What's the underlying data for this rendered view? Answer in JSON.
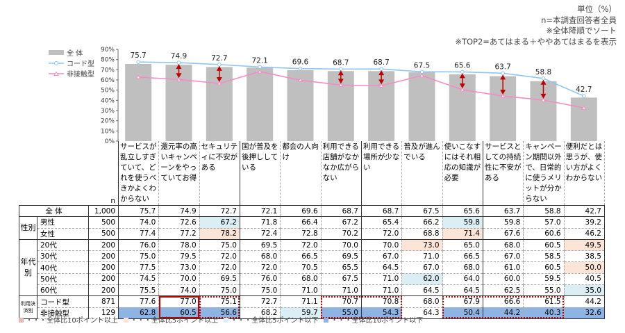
{
  "notes": [
    "単位（%）",
    "n=本調査回答者全員",
    "※全体降順でソート",
    "※TOP2=あてはまる＋ややあてはまるを表示"
  ],
  "legend": {
    "total": "全 体",
    "code": "コード型",
    "contactless": "非接触型"
  },
  "colors": {
    "bar": "#bfbfbf",
    "code": "#8ec5f5",
    "contactless": "#f28cc8",
    "arrow": "#c00000",
    "plus10": "#e6b8b7",
    "plus5": "#fce4d6",
    "minus5": "#daeef3",
    "minus10": "#8db4e2"
  },
  "chart_data": {
    "type": "bar",
    "categories": [
      "サービスが乱立しすぎていて、どれを使うべきかよくわからない",
      "還元率の高いキャンペーンをやっていてお得",
      "セキュリティに不安がある",
      "国が普及を後押ししている",
      "都会の人向け",
      "利用できる店舗がなかなか広がらない",
      "利用できる場所が少ない",
      "普及が進んでいる",
      "使いこなすにはそれ相応の知識が必要",
      "サービスとしての持続性に不安がある",
      "キャンペーン期間以外で、日常的に使うメリットが分からない",
      "便利だとは思うが、使い方がよくわからない"
    ],
    "series": [
      {
        "name": "全 体",
        "type": "bar",
        "values": [
          75.7,
          74.9,
          72.7,
          72.1,
          69.6,
          68.7,
          68.7,
          67.5,
          65.6,
          63.7,
          58.8,
          42.7
        ]
      },
      {
        "name": "コード型",
        "type": "line",
        "values": [
          77.6,
          77.0,
          75.1,
          72.7,
          71.1,
          70.7,
          70.8,
          68.0,
          67.9,
          66.6,
          61.5,
          44.2
        ]
      },
      {
        "name": "非接触型",
        "type": "line",
        "values": [
          62.8,
          60.5,
          56.6,
          68.2,
          59.7,
          55.0,
          54.3,
          64.3,
          50.4,
          44.2,
          40.3,
          32.6
        ]
      }
    ],
    "arrows_at": [
      1,
      2,
      5,
      6,
      8,
      9,
      10
    ],
    "yticks": [
      "0%",
      "10%",
      "20%",
      "30%",
      "40%",
      "50%",
      "60%",
      "70%",
      "80%",
      "90%"
    ],
    "ylim": [
      0,
      90
    ]
  },
  "table": {
    "n_header": "n",
    "rows": [
      {
        "group": "全 体",
        "label": "",
        "n": "1,000",
        "values": [
          "75.7",
          "74.9",
          "72.7",
          "72.1",
          "69.6",
          "68.7",
          "68.7",
          "67.5",
          "65.6",
          "63.7",
          "58.8",
          "42.7"
        ],
        "hl": [
          "",
          "",
          "",
          "",
          "",
          "",
          "",
          "",
          "",
          "",
          "",
          ""
        ]
      },
      {
        "group": "性別",
        "label": "男性",
        "n": "500",
        "values": [
          "74.0",
          "72.6",
          "67.2",
          "71.8",
          "66.4",
          "67.2",
          "65.4",
          "66.2",
          "59.8",
          "59.8",
          "57.0",
          "39.2"
        ],
        "hl": [
          "",
          "",
          "lb",
          "",
          "",
          "",
          "",
          "",
          "lb",
          "",
          "",
          ""
        ]
      },
      {
        "group": "",
        "label": "女性",
        "n": "500",
        "values": [
          "77.4",
          "77.2",
          "78.2",
          "72.4",
          "72.8",
          "70.2",
          "72.0",
          "68.8",
          "71.4",
          "67.6",
          "60.6",
          "46.2"
        ],
        "hl": [
          "",
          "",
          "pe",
          "",
          "",
          "",
          "",
          "",
          "pe",
          "",
          "",
          ""
        ]
      },
      {
        "group": "年代別",
        "label": "20代",
        "n": "200",
        "values": [
          "76.0",
          "78.0",
          "75.0",
          "69.5",
          "72.0",
          "70.0",
          "70.0",
          "73.0",
          "65.0",
          "68.0",
          "60.5",
          "49.5"
        ],
        "hl": [
          "",
          "",
          "",
          "",
          "",
          "",
          "",
          "pe",
          "",
          "",
          "",
          "pe"
        ]
      },
      {
        "group": "",
        "label": "30代",
        "n": "200",
        "values": [
          "75.0",
          "79.5",
          "72.0",
          "68.0",
          "66.5",
          "69.5",
          "67.0",
          "71.0",
          "66.5",
          "67.0",
          "58.5",
          "38.5"
        ],
        "hl": [
          "",
          "",
          "",
          "",
          "",
          "",
          "",
          "",
          "",
          "",
          "",
          ""
        ]
      },
      {
        "group": "",
        "label": "40代",
        "n": "200",
        "values": [
          "77.5",
          "73.0",
          "72.0",
          "72.0",
          "70.5",
          "65.5",
          "64.5",
          "67.0",
          "68.0",
          "61.0",
          "60.5",
          "50.0"
        ],
        "hl": [
          "",
          "",
          "",
          "",
          "",
          "",
          "",
          "",
          "",
          "",
          "",
          "pe"
        ]
      },
      {
        "group": "",
        "label": "50代",
        "n": "200",
        "values": [
          "74.5",
          "70.0",
          "69.5",
          "76.0",
          "68.0",
          "67.5",
          "71.0",
          "62.0",
          "64.0",
          "60.0",
          "59.5",
          "40.5"
        ],
        "hl": [
          "",
          "",
          "",
          "",
          "",
          "",
          "",
          "lb",
          "",
          "",
          "",
          ""
        ]
      },
      {
        "group": "",
        "label": "60代",
        "n": "200",
        "values": [
          "75.5",
          "74.0",
          "75.0",
          "75.0",
          "71.0",
          "71.0",
          "71.0",
          "64.5",
          "64.5",
          "62.5",
          "55.0",
          "35.0"
        ],
        "hl": [
          "",
          "",
          "",
          "",
          "",
          "",
          "",
          "",
          "",
          "",
          "",
          "lb"
        ]
      },
      {
        "group": "利用決済別",
        "label": "コード型",
        "n": "871",
        "values": [
          "77.6",
          "77.0",
          "75.1",
          "72.7",
          "71.1",
          "70.7",
          "70.8",
          "68.0",
          "67.9",
          "66.6",
          "61.5",
          "44.2"
        ],
        "hl": [
          "",
          "",
          "",
          "",
          "",
          "",
          "",
          "",
          "",
          "",
          "",
          ""
        ]
      },
      {
        "group": "",
        "label": "非接触型",
        "n": "129",
        "values": [
          "62.8",
          "60.5",
          "56.6",
          "68.2",
          "59.7",
          "55.0",
          "54.3",
          "64.3",
          "50.4",
          "44.2",
          "40.3",
          "32.6"
        ],
        "hl": [
          "bl",
          "bl",
          "bl",
          "",
          "lb",
          "bl",
          "bl",
          "",
          "bl",
          "bl",
          "bl",
          "bl"
        ]
      }
    ]
  },
  "footer": [
    "・・・全体比10ポイント以上",
    "・・・全体比5ポイント以上",
    "・・・全体比5ポイント以下",
    "・・・全体比10ポイント以下"
  ]
}
